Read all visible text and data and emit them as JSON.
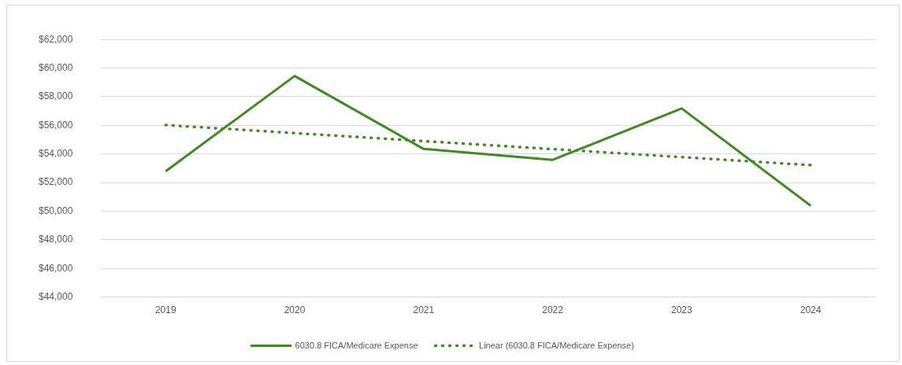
{
  "chart_data": {
    "type": "line",
    "categories": [
      "2019",
      "2020",
      "2021",
      "2022",
      "2023",
      "2024"
    ],
    "series": [
      {
        "name": "6030.8 FICA/Medicare Expense",
        "color": "#3f8a24",
        "values": [
          52790,
          59450,
          54350,
          53590,
          57180,
          50380
        ],
        "line_style": "solid"
      },
      {
        "name": "Linear (6030.8 FICA/Medicare Expense)",
        "color": "#3f8a24",
        "values": [
          56020,
          55460,
          54900,
          54340,
          53780,
          53220
        ],
        "line_style": "dotted"
      }
    ],
    "ylim": [
      44000,
      62000
    ],
    "yticks": [
      {
        "value": 44000,
        "label": "$44,000"
      },
      {
        "value": 46000,
        "label": "$46,000"
      },
      {
        "value": 48000,
        "label": "$48,000"
      },
      {
        "value": 50000,
        "label": "$50,000"
      },
      {
        "value": 52000,
        "label": "$52,000"
      },
      {
        "value": 54000,
        "label": "$54,000"
      },
      {
        "value": 56000,
        "label": "$56,000"
      },
      {
        "value": 58000,
        "label": "$58,000"
      },
      {
        "value": 60000,
        "label": "$60,000"
      },
      {
        "value": 62000,
        "label": "$62,000"
      }
    ],
    "grid": "y",
    "legend": "bottom",
    "marker": "none"
  }
}
